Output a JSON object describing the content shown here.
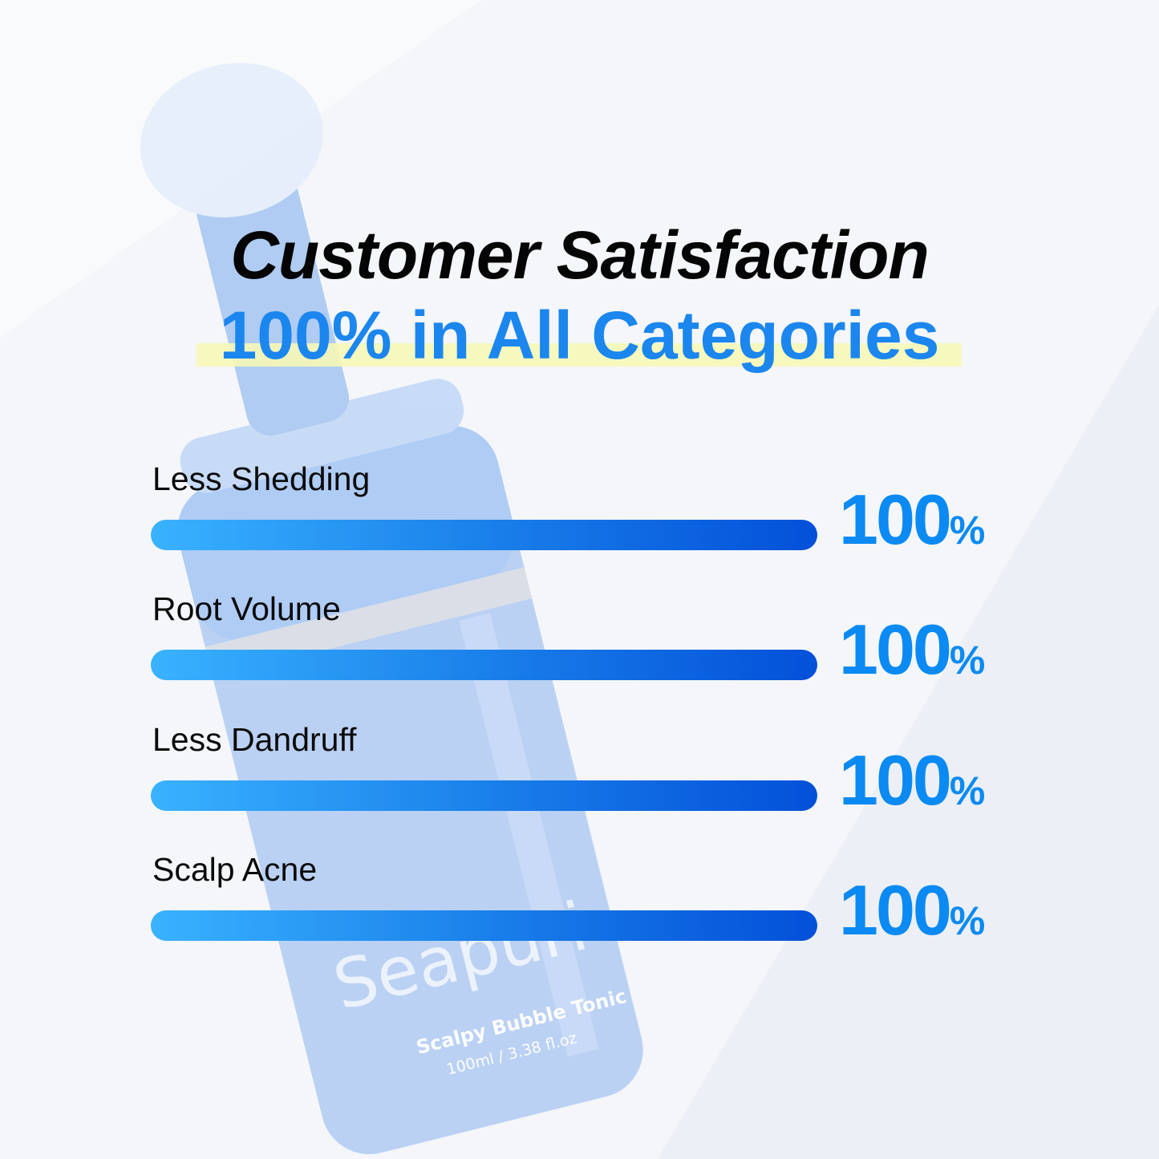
{
  "product": {
    "brand": "Seapuri",
    "name": "Scalpy Bubble Tonic",
    "volume": "100ml / 3.38 fl.oz"
  },
  "chart_data": {
    "type": "bar",
    "title": "Customer Satisfaction",
    "subtitle": "100% in All Categories",
    "categories": [
      "Less Shedding",
      "Root Volume",
      "Less Dandruff",
      "Scalp Acne"
    ],
    "values": [
      100,
      100,
      100,
      100
    ],
    "value_labels": [
      "100",
      "100",
      "100",
      "100"
    ],
    "unit": "%",
    "ylim": [
      0,
      100
    ],
    "orientation": "horizontal",
    "grid": false,
    "colors": {
      "bar_start": "#39b2ff",
      "bar_end": "#0350d9",
      "value": "#0a8af2",
      "subtitle": "#1b86ee",
      "highlight": "#f7f8b6"
    }
  }
}
